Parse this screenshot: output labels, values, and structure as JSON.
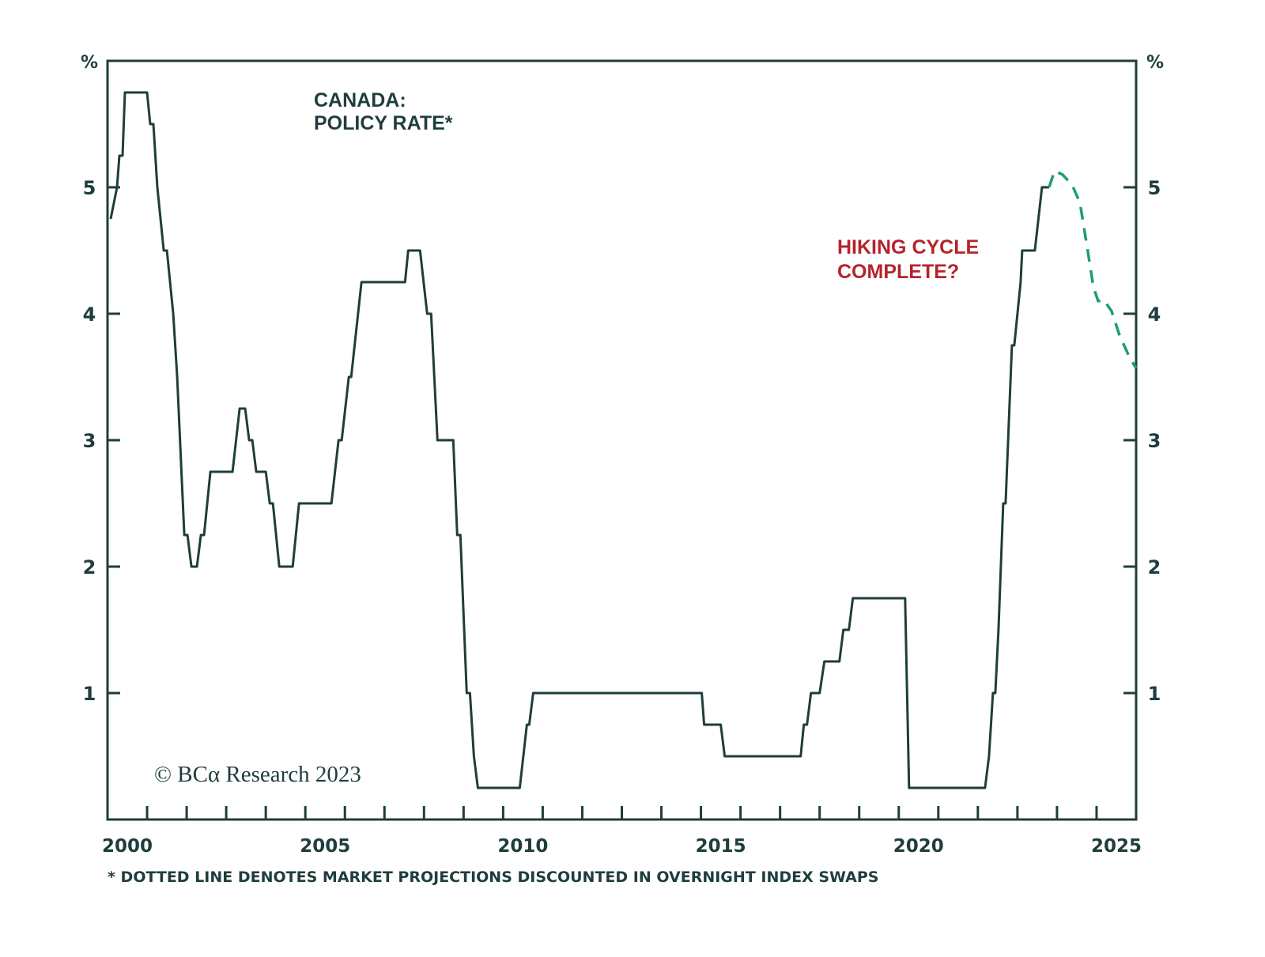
{
  "chart_data": {
    "type": "line",
    "title": "CANADA:",
    "subtitle": "POLICY RATE*",
    "xlabel": "",
    "ylabel": "%",
    "ylabel_right": "%",
    "xlim": [
      2000,
      2026
    ],
    "ylim": [
      0,
      6
    ],
    "x_ticks": [
      2000,
      2005,
      2010,
      2015,
      2020,
      2025
    ],
    "y_ticks": [
      1,
      2,
      3,
      4,
      5
    ],
    "grid": false,
    "legend": "none",
    "annotation": {
      "line1": "HIKING CYCLE",
      "line2": "COMPLETE?",
      "color": "#b5232b"
    },
    "copyright": "© BCα Research 2023",
    "footnote": "* DOTTED LINE DENOTES MARKET PROJECTIONS DISCOUNTED IN OVERNIGHT INDEX SWAPS",
    "series": [
      {
        "name": "Policy rate",
        "style": "solid",
        "color": "#1f3d3d",
        "x": [
          2000.08,
          2000.24,
          2000.3,
          2000.38,
          2000.44,
          2001.0,
          2001.08,
          2001.16,
          2001.26,
          2001.42,
          2001.5,
          2001.66,
          2001.76,
          2001.94,
          2002.02,
          2002.12,
          2002.26,
          2002.36,
          2002.44,
          2002.6,
          2003.16,
          2003.34,
          2003.48,
          2003.58,
          2003.66,
          2003.76,
          2004.0,
          2004.1,
          2004.18,
          2004.34,
          2004.68,
          2004.84,
          2005.66,
          2005.84,
          2005.92,
          2006.1,
          2006.16,
          2006.42,
          2007.52,
          2007.6,
          2007.9,
          2008.08,
          2008.18,
          2008.34,
          2008.74,
          2008.84,
          2008.92,
          2009.08,
          2009.16,
          2009.26,
          2009.36,
          2010.42,
          2010.6,
          2010.66,
          2010.76,
          2015.02,
          2015.08,
          2015.5,
          2015.6,
          2017.52,
          2017.6,
          2017.68,
          2017.78,
          2018.0,
          2018.12,
          2018.5,
          2018.6,
          2018.74,
          2018.84,
          2020.16,
          2020.26,
          2022.18,
          2022.28,
          2022.38,
          2022.44,
          2022.52,
          2022.64,
          2022.7,
          2022.86,
          2022.92,
          2023.08,
          2023.12,
          2023.44,
          2023.62,
          2023.8
        ],
        "y": [
          4.75,
          5.0,
          5.25,
          5.25,
          5.75,
          5.75,
          5.5,
          5.5,
          5.0,
          4.5,
          4.5,
          4.0,
          3.5,
          2.25,
          2.25,
          2.0,
          2.0,
          2.25,
          2.25,
          2.75,
          2.75,
          3.25,
          3.25,
          3.0,
          3.0,
          2.75,
          2.75,
          2.5,
          2.5,
          2.0,
          2.0,
          2.5,
          2.5,
          3.0,
          3.0,
          3.5,
          3.5,
          4.25,
          4.25,
          4.5,
          4.5,
          4.0,
          4.0,
          3.0,
          3.0,
          2.25,
          2.25,
          1.0,
          1.0,
          0.5,
          0.25,
          0.25,
          0.75,
          0.75,
          1.0,
          1.0,
          0.75,
          0.75,
          0.5,
          0.5,
          0.75,
          0.75,
          1.0,
          1.0,
          1.25,
          1.25,
          1.5,
          1.5,
          1.75,
          1.75,
          0.25,
          0.25,
          0.5,
          1.0,
          1.0,
          1.5,
          2.5,
          2.5,
          3.75,
          3.75,
          4.25,
          4.5,
          4.5,
          5.0,
          5.0
        ]
      },
      {
        "name": "Market projection (OIS)",
        "style": "dashed",
        "color": "#1e9e70",
        "x": [
          2023.8,
          2023.94,
          2024.14,
          2024.38,
          2024.58,
          2024.78,
          2024.92,
          2025.04,
          2025.18,
          2025.38,
          2025.58,
          2025.84,
          2026.0
        ],
        "y": [
          5.0,
          5.13,
          5.1,
          5.02,
          4.88,
          4.49,
          4.21,
          4.1,
          4.11,
          4.02,
          3.83,
          3.65,
          3.57
        ]
      }
    ]
  }
}
